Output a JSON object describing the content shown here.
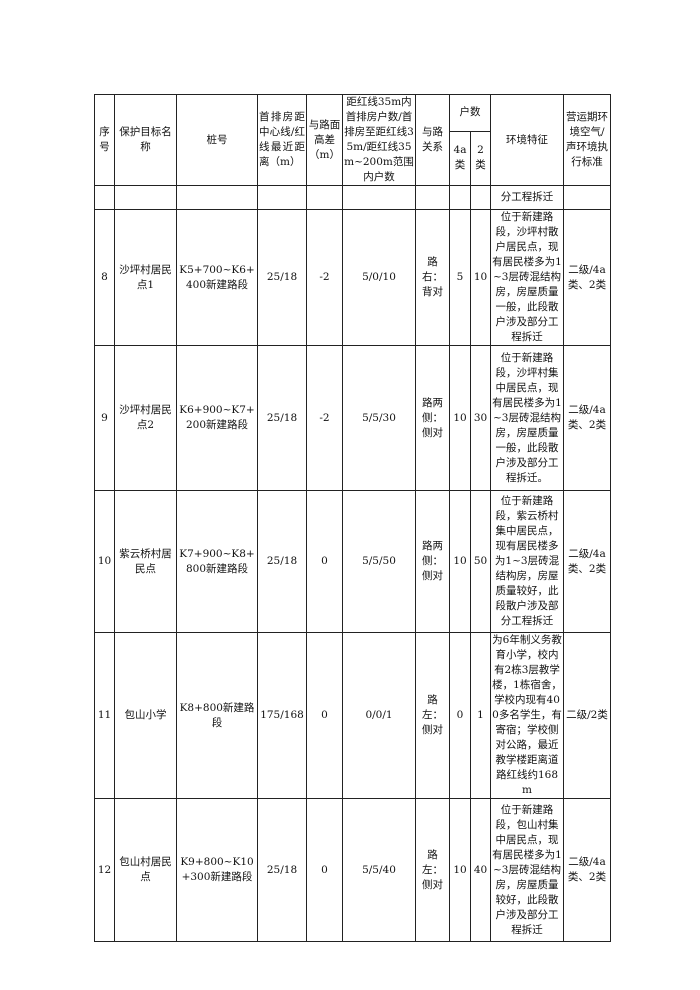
{
  "headers": {
    "no": "序号",
    "name": "保护目标名称",
    "stake": "桩号",
    "dist": "首排房距中心线/红线最近距离（m）",
    "height": "与路面高差（m）",
    "households": "距红线35m内首排房户数/首排房至距红线35m/距红线35m~200m范围内户数",
    "relation": "与路关系",
    "count": "户数",
    "c4a": "4a类",
    "c2": "2类",
    "env": "环境特征",
    "std": "营运期环境空气/声环境执行标准"
  },
  "continued_env": "分工程拆迁",
  "rows": [
    {
      "no": "8",
      "name": "沙坪村居民点1",
      "stake": "K5+700~K6+400新建路段",
      "dist": "25/18",
      "height": "-2",
      "households": "5/0/10",
      "relation": "路右：背对",
      "c4a": "5",
      "c2": "10",
      "env": "位于新建路段，沙坪村散户居民点，现有居民楼多为1~3层砖混结构房，房屋质量一般，此段散户涉及部分工程拆迁",
      "std": "二级/4a类、2类"
    },
    {
      "no": "9",
      "name": "沙坪村居民点2",
      "stake": "K6+900~K7+200新建路段",
      "dist": "25/18",
      "height": "-2",
      "households": "5/5/30",
      "relation": "路两侧：侧对",
      "c4a": "10",
      "c2": "30",
      "env": "位于新建路段，沙坪村集中居民点，现有居民楼多为1~3层砖混结构房，房屋质量一般，此段散户涉及部分工程拆迁。",
      "std": "二级/4a类、2类"
    },
    {
      "no": "10",
      "name": "紫云桥村居民点",
      "stake": "K7+900~K8+800新建路段",
      "dist": "25/18",
      "height": "0",
      "households": "5/5/50",
      "relation": "路两侧：侧对",
      "c4a": "10",
      "c2": "50",
      "env": "位于新建路段，紫云桥村集中居民点，现有居民楼多为1~3层砖混结构房，房屋质量较好，此段散户涉及部分工程拆迁",
      "std": "二级/4a类、2类"
    },
    {
      "no": "11",
      "name": "包山小学",
      "stake": "K8+800新建路段",
      "dist": "175/168",
      "height": "0",
      "households": "0/0/1",
      "relation": "路左：侧对",
      "c4a": "0",
      "c2": "1",
      "env": "为6年制义务教育小学，校内有2栋3层教学楼，1栋宿舍，学校内现有400多名学生，有寄宿；学校侧对公路，最近教学楼距离道路红线约168m",
      "std": "二级/2类"
    },
    {
      "no": "12",
      "name": "包山村居民点",
      "stake": "K9+800~K10+300新建路段",
      "dist": "25/18",
      "height": "0",
      "households": "5/5/40",
      "relation": "路左：侧对",
      "c4a": "10",
      "c2": "40",
      "env": "位于新建路段，包山村集中居民点，现有居民楼多为1~3层砖混结构房，房屋质量较好，此段散户涉及部分工程拆迁",
      "std": "二级/4a类、2类"
    }
  ]
}
